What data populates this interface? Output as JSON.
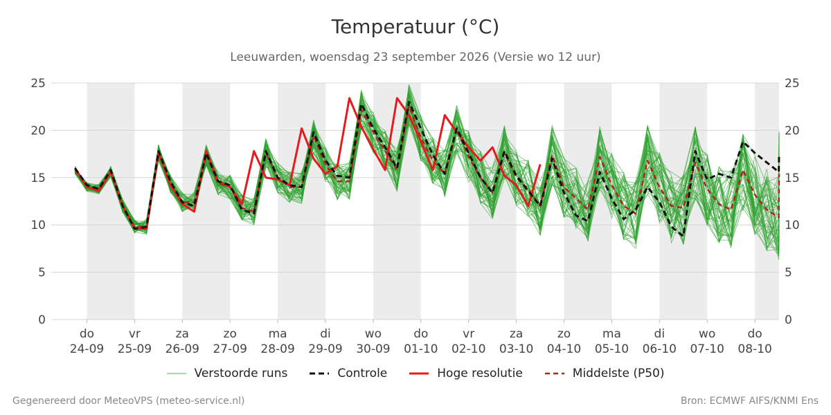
{
  "chart_data": {
    "type": "line",
    "title": "Temperatuur (°C)",
    "subtitle": "Leeuwarden, woensdag 23 september 2026 (Versie wo 12 uur)",
    "ylim": [
      0,
      25
    ],
    "yticks": [
      0,
      5,
      10,
      15,
      20,
      25
    ],
    "x_labels": [
      {
        "day": "do",
        "date": "24-09"
      },
      {
        "day": "vr",
        "date": "25-09"
      },
      {
        "day": "za",
        "date": "26-09"
      },
      {
        "day": "zo",
        "date": "27-09"
      },
      {
        "day": "ma",
        "date": "28-09"
      },
      {
        "day": "di",
        "date": "29-09"
      },
      {
        "day": "wo",
        "date": "30-09"
      },
      {
        "day": "do",
        "date": "01-10"
      },
      {
        "day": "vr",
        "date": "02-10"
      },
      {
        "day": "za",
        "date": "03-10"
      },
      {
        "day": "zo",
        "date": "04-10"
      },
      {
        "day": "ma",
        "date": "05-10"
      },
      {
        "day": "di",
        "date": "06-10"
      },
      {
        "day": "wo",
        "date": "07-10"
      },
      {
        "day": "do",
        "date": "08-10"
      }
    ],
    "grid": true,
    "colors": {
      "ensemble": "#2ca02c",
      "control": "#111111",
      "high_res": "#e41a1c",
      "median": "#b22222",
      "weekend_band": "#ececec"
    },
    "series": [
      {
        "name": "Controle",
        "style": "dashed",
        "values": [
          16.0,
          14.2,
          13.8,
          15.8,
          12.0,
          9.6,
          9.8,
          17.8,
          14.6,
          12.4,
          12.0,
          17.6,
          14.6,
          14.2,
          11.6,
          11.2,
          17.8,
          15.0,
          14.2,
          14.0,
          19.8,
          16.8,
          15.2,
          15.0,
          22.8,
          20.2,
          18.2,
          16.0,
          23.0,
          20.2,
          17.4,
          15.4,
          20.2,
          17.6,
          15.0,
          13.4,
          17.8,
          15.2,
          13.6,
          12.0,
          17.0,
          13.4,
          11.0,
          10.4,
          15.6,
          12.8,
          10.6,
          11.6,
          14.0,
          12.4,
          9.8,
          8.8,
          17.8,
          14.8,
          15.4,
          15.0,
          18.8,
          17.6,
          16.6,
          15.6,
          17.4
        ]
      },
      {
        "name": "Hoge resolutie",
        "style": "solid",
        "values": [
          16.0,
          14.0,
          13.6,
          15.6,
          12.0,
          9.6,
          9.6,
          17.6,
          14.2,
          12.2,
          11.4,
          17.8,
          14.6,
          14.0,
          12.2,
          17.8,
          15.0,
          14.8,
          14.2,
          20.2,
          17.0,
          15.4,
          16.2,
          23.4,
          20.4,
          18.0,
          15.8,
          23.4,
          21.6,
          18.8,
          15.8,
          21.6,
          19.8,
          18.2,
          16.8,
          18.2,
          15.2,
          14.2,
          12.0,
          16.4
        ]
      },
      {
        "name": "Middelste (P50)",
        "style": "dashed",
        "values": [
          15.8,
          14.0,
          13.8,
          15.6,
          12.0,
          9.8,
          9.8,
          17.6,
          14.4,
          12.4,
          12.4,
          17.4,
          14.4,
          14.0,
          11.8,
          11.4,
          17.6,
          15.0,
          14.0,
          14.0,
          19.4,
          16.4,
          14.6,
          14.6,
          22.2,
          19.8,
          17.8,
          15.8,
          22.6,
          19.2,
          16.8,
          15.4,
          20.2,
          17.2,
          15.0,
          13.4,
          17.6,
          15.0,
          13.8,
          12.0,
          17.4,
          14.0,
          12.8,
          11.6,
          17.2,
          14.2,
          12.0,
          11.2,
          16.8,
          14.0,
          12.0,
          11.8,
          16.6,
          13.8,
          12.2,
          11.6,
          15.8,
          13.2,
          11.6,
          10.8,
          15.4
        ]
      }
    ],
    "legend": [
      {
        "label": "Verstoorde runs",
        "style": "thin-green"
      },
      {
        "label": "Controle",
        "style": "dashed-black"
      },
      {
        "label": "Hoge resolutie",
        "style": "solid-red"
      },
      {
        "label": "Middelste (P50)",
        "style": "dashed-darkred"
      }
    ]
  },
  "footer": {
    "left": "Gegenereerd door MeteoVPS (meteo-service.nl)",
    "right": "Bron: ECMWF AIFS/KNMI Ens"
  }
}
